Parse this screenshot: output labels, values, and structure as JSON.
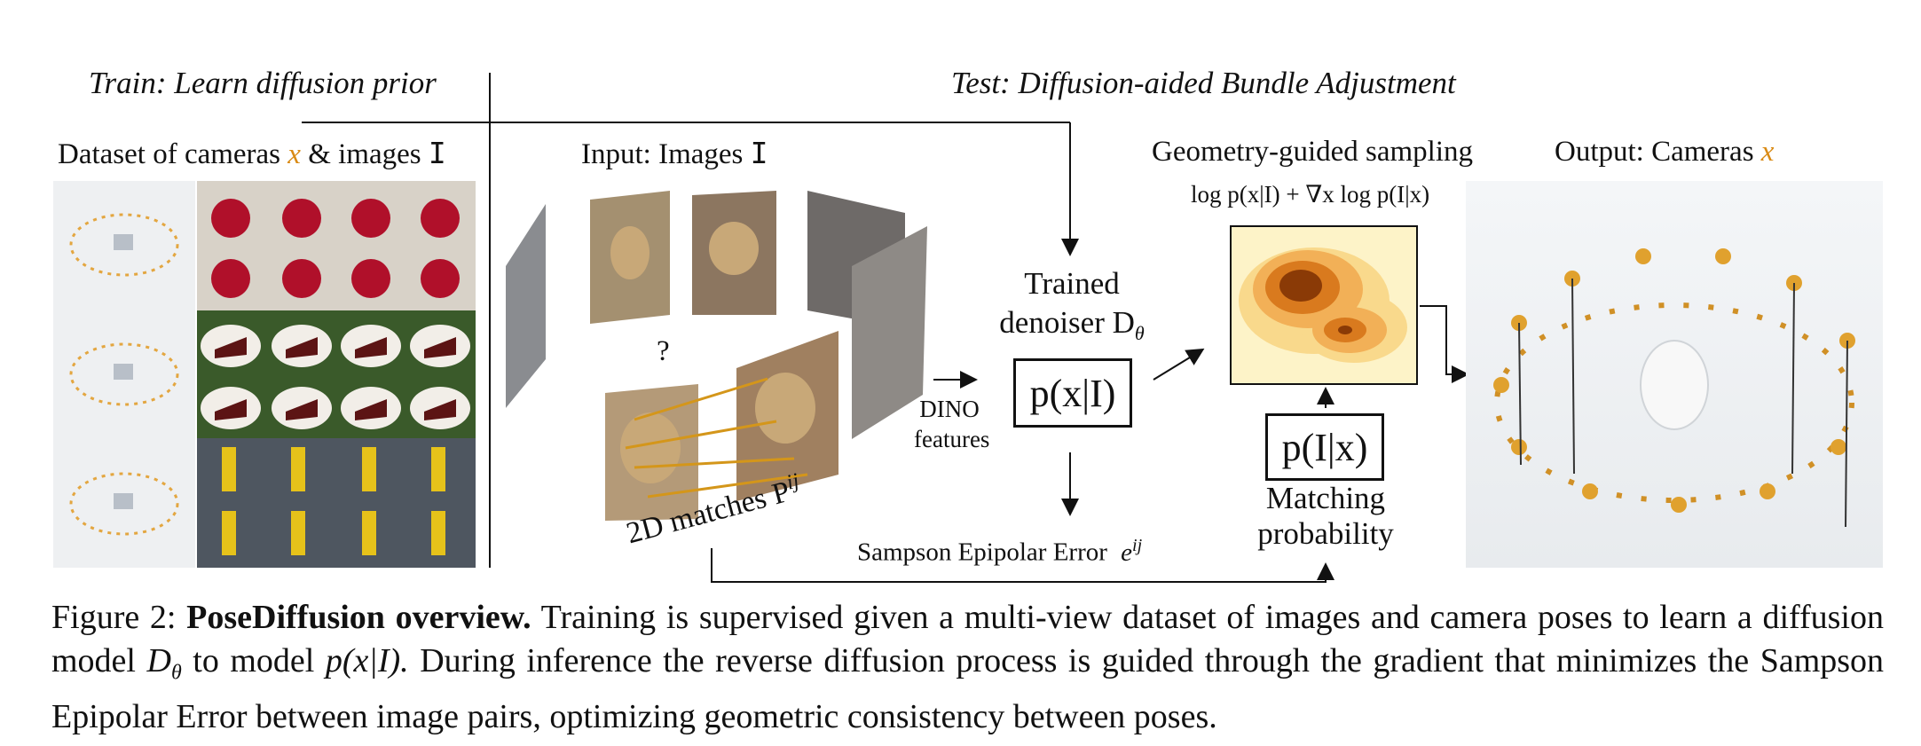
{
  "headers": {
    "train": "Train: Learn diffusion prior",
    "test": "Test: Diffusion-aided Bundle Adjustment"
  },
  "labels": {
    "dataset_prefix": "Dataset of cameras",
    "dataset_x": "x",
    "dataset_and": "& images",
    "dataset_I": "I",
    "input_prefix": "Input: Images",
    "input_I": "I",
    "question": "?",
    "matches": "2D matches P",
    "matches_sup": "ij",
    "dino_line1": "DINO",
    "dino_line2": "features",
    "denoiser_line1": "Trained",
    "denoiser_line2": "denoiser D",
    "denoiser_sub": "θ",
    "box_p_x_given_I": "p(x|I)",
    "geo_sampling": "Geometry-guided sampling",
    "formula": "log p(x|I) + ∇x log p(I|x)",
    "box_p_I_given_x": "p(I|x)",
    "matching_line1": "Matching",
    "matching_line2": "probability",
    "sampson": "Sampson Epipolar Error",
    "sampson_sym": "e",
    "sampson_sup": "ij",
    "output_prefix": "Output: Cameras",
    "output_x": "x"
  },
  "caption": {
    "figure_label": "Figure 2:",
    "bold_title": "PoseDiffusion overview.",
    "text_part1": "Training is supervised given a multi-view dataset of images and camera poses to learn a diffusion model",
    "model_symbol": "D",
    "model_sub": "θ",
    "text_part2": "to model",
    "model_expr": "p(x|I).",
    "text_part3": "During inference the reverse diffusion process is guided through the gradient that minimizes the Sampson Epipolar Error between image pairs, optimizing geometric consistency between poses."
  },
  "colors": {
    "accent_orange": "#d98a14",
    "heatmap_dark": "#8a3a06",
    "heatmap_light": "#fdf3c8"
  }
}
